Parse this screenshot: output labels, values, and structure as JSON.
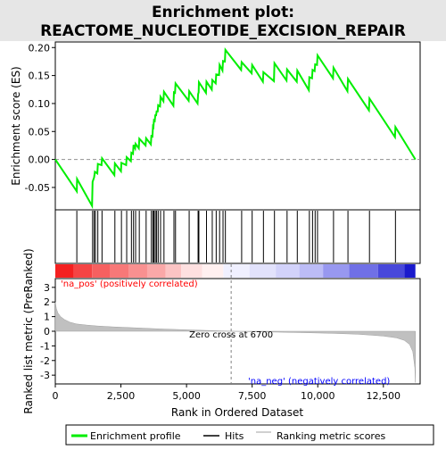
{
  "chart_data": {
    "type": "line",
    "title_line1": "Enrichment plot:",
    "title_line2": "REACTOME_NUCLEOTIDE_EXCISION_REPAIR",
    "es_ylabel": "Enrichment score (ES)",
    "rank_ylabel": "Ranked list metric (PreRanked)",
    "xlabel": "Rank in Ordered Dataset",
    "x_ticks": [
      "0",
      "2,500",
      "5,000",
      "7,500",
      "10,000",
      "12,500"
    ],
    "es_ticks": [
      "-0.05",
      "0.00",
      "0.05",
      "0.10",
      "0.15",
      "0.20"
    ],
    "rank_ticks": [
      "-3",
      "-2",
      "-1",
      "0",
      "1",
      "2",
      "3"
    ],
    "xlim": [
      0,
      13900
    ],
    "es_ylim": [
      -0.09,
      0.21
    ],
    "rank_ylim": [
      -3.6,
      3.6
    ],
    "n_genes": 13720,
    "zero_cross_label": "Zero cross at 6700",
    "zero_cross_rank": 6700,
    "pos_label": "'na_pos' (positively correlated)",
    "neg_label": "'na_neg' (negatively correlated)",
    "legend": {
      "enrichment_profile": "Enrichment profile",
      "hits": "Hits",
      "ranking_metric_scores": "Ranking metric scores"
    },
    "colors": {
      "enrichment_line": "#00ee00",
      "hits": "#000000",
      "metric_fill": "#c0c0c0",
      "zero_line": "#808080",
      "pos_text": "#ff0000",
      "neg_text": "#0000ff",
      "title_bg": "#e6e6e6"
    },
    "hits": [
      820,
      1420,
      1480,
      1530,
      1620,
      1780,
      2270,
      2520,
      2720,
      2900,
      2980,
      3060,
      3200,
      3460,
      3660,
      3720,
      3760,
      3810,
      3860,
      3920,
      4010,
      4140,
      4520,
      4580,
      5100,
      5440,
      5470,
      5760,
      5980,
      6130,
      6260,
      6390,
      6480,
      7100,
      7500,
      7930,
      8350,
      8830,
      9220,
      9680,
      9800,
      9900,
      9990,
      10600,
      11150,
      11970,
      12960
    ],
    "es_profile": [
      [
        0,
        0.0
      ],
      [
        820,
        -0.057
      ],
      [
        830,
        -0.035
      ],
      [
        1400,
        -0.083
      ],
      [
        1420,
        -0.04
      ],
      [
        1480,
        -0.032
      ],
      [
        1510,
        -0.022
      ],
      [
        1600,
        -0.025
      ],
      [
        1620,
        -0.008
      ],
      [
        1760,
        -0.01
      ],
      [
        1780,
        0.002
      ],
      [
        2250,
        -0.028
      ],
      [
        2270,
        -0.007
      ],
      [
        2500,
        -0.021
      ],
      [
        2520,
        -0.006
      ],
      [
        2700,
        -0.01
      ],
      [
        2720,
        0.004
      ],
      [
        2880,
        -0.003
      ],
      [
        2900,
        0.012
      ],
      [
        2960,
        0.01
      ],
      [
        2980,
        0.026
      ],
      [
        3040,
        0.02
      ],
      [
        3060,
        0.028
      ],
      [
        3180,
        0.02
      ],
      [
        3200,
        0.037
      ],
      [
        3440,
        0.025
      ],
      [
        3460,
        0.038
      ],
      [
        3640,
        0.027
      ],
      [
        3660,
        0.042
      ],
      [
        3700,
        0.041
      ],
      [
        3720,
        0.059
      ],
      [
        3740,
        0.058
      ],
      [
        3760,
        0.07
      ],
      [
        3790,
        0.069
      ],
      [
        3810,
        0.079
      ],
      [
        3840,
        0.079
      ],
      [
        3860,
        0.086
      ],
      [
        3900,
        0.086
      ],
      [
        3920,
        0.097
      ],
      [
        3990,
        0.095
      ],
      [
        4010,
        0.112
      ],
      [
        4120,
        0.104
      ],
      [
        4140,
        0.121
      ],
      [
        4500,
        0.096
      ],
      [
        4520,
        0.12
      ],
      [
        4560,
        0.119
      ],
      [
        4580,
        0.136
      ],
      [
        5080,
        0.105
      ],
      [
        5100,
        0.122
      ],
      [
        5420,
        0.1
      ],
      [
        5440,
        0.117
      ],
      [
        5460,
        0.12
      ],
      [
        5470,
        0.138
      ],
      [
        5740,
        0.119
      ],
      [
        5760,
        0.139
      ],
      [
        5960,
        0.125
      ],
      [
        5980,
        0.142
      ],
      [
        6110,
        0.136
      ],
      [
        6130,
        0.152
      ],
      [
        6240,
        0.151
      ],
      [
        6260,
        0.169
      ],
      [
        6370,
        0.159
      ],
      [
        6390,
        0.176
      ],
      [
        6460,
        0.175
      ],
      [
        6480,
        0.196
      ],
      [
        7080,
        0.16
      ],
      [
        7100,
        0.174
      ],
      [
        7480,
        0.154
      ],
      [
        7500,
        0.169
      ],
      [
        7910,
        0.139
      ],
      [
        7930,
        0.156
      ],
      [
        8330,
        0.14
      ],
      [
        8350,
        0.172
      ],
      [
        8810,
        0.141
      ],
      [
        8830,
        0.161
      ],
      [
        9200,
        0.139
      ],
      [
        9220,
        0.159
      ],
      [
        9660,
        0.124
      ],
      [
        9680,
        0.147
      ],
      [
        9780,
        0.145
      ],
      [
        9800,
        0.16
      ],
      [
        9880,
        0.158
      ],
      [
        9900,
        0.17
      ],
      [
        9970,
        0.169
      ],
      [
        9990,
        0.186
      ],
      [
        10580,
        0.145
      ],
      [
        10600,
        0.164
      ],
      [
        11130,
        0.122
      ],
      [
        11150,
        0.144
      ],
      [
        11950,
        0.088
      ],
      [
        11970,
        0.109
      ],
      [
        12940,
        0.04
      ],
      [
        12960,
        0.058
      ],
      [
        13720,
        0.0
      ]
    ],
    "metric_curve": [
      [
        0,
        2.0
      ],
      [
        40,
        1.55
      ],
      [
        100,
        1.25
      ],
      [
        200,
        1.0
      ],
      [
        350,
        0.8
      ],
      [
        550,
        0.62
      ],
      [
        800,
        0.5
      ],
      [
        1200,
        0.42
      ],
      [
        1600,
        0.36
      ],
      [
        2200,
        0.3
      ],
      [
        3000,
        0.24
      ],
      [
        4000,
        0.16
      ],
      [
        5000,
        0.1
      ],
      [
        6000,
        0.04
      ],
      [
        6700,
        0.0
      ],
      [
        7500,
        -0.03
      ],
      [
        8500,
        -0.06
      ],
      [
        9500,
        -0.1
      ],
      [
        10500,
        -0.14
      ],
      [
        11500,
        -0.2
      ],
      [
        12000,
        -0.26
      ],
      [
        12500,
        -0.33
      ],
      [
        13000,
        -0.45
      ],
      [
        13300,
        -0.62
      ],
      [
        13500,
        -0.9
      ],
      [
        13620,
        -1.4
      ],
      [
        13700,
        -2.5
      ],
      [
        13720,
        -3.5
      ]
    ],
    "heatmap_segments": [
      [
        0,
        700,
        "#f42020"
      ],
      [
        700,
        1400,
        "#f54444"
      ],
      [
        1400,
        2100,
        "#f66060"
      ],
      [
        2100,
        2800,
        "#f77878"
      ],
      [
        2800,
        3500,
        "#f89090"
      ],
      [
        3500,
        4200,
        "#faa8a8"
      ],
      [
        4200,
        4800,
        "#fcc4c4"
      ],
      [
        4800,
        5600,
        "#fee0e0"
      ],
      [
        5600,
        6400,
        "#fff0f0"
      ],
      [
        6400,
        7400,
        "#f0f0ff"
      ],
      [
        7400,
        8400,
        "#e2e2fc"
      ],
      [
        8400,
        9300,
        "#d2d2fa"
      ],
      [
        9300,
        10200,
        "#bcbcf6"
      ],
      [
        10200,
        11200,
        "#9898f0"
      ],
      [
        11200,
        12300,
        "#7070e6"
      ],
      [
        12300,
        13300,
        "#4848da"
      ],
      [
        13300,
        13720,
        "#1a1acc"
      ]
    ]
  }
}
